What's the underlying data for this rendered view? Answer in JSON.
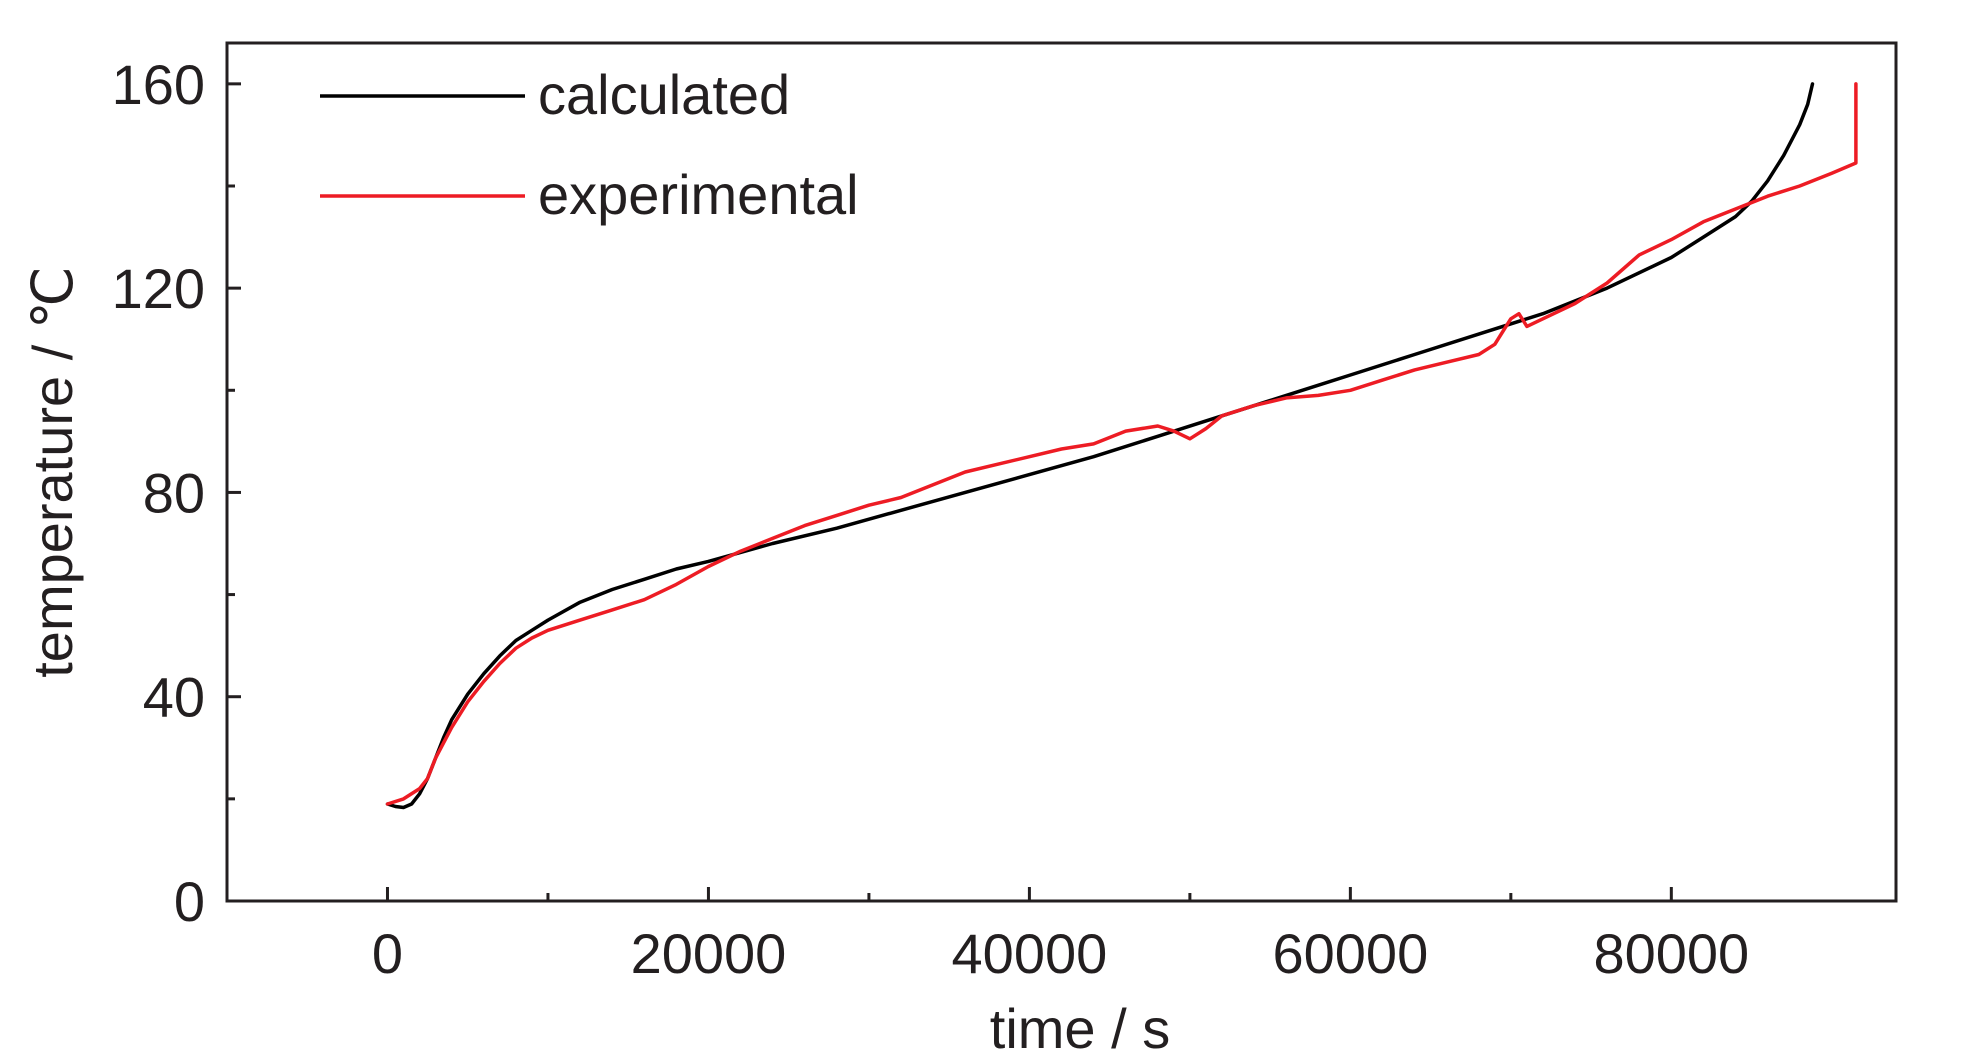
{
  "chart_data": {
    "type": "line",
    "title": "",
    "xlabel": "time / s",
    "ylabel": "temperature / ℃",
    "xlim": [
      -10000,
      94000
    ],
    "ylim": [
      0,
      168
    ],
    "xticks": [
      0,
      20000,
      40000,
      60000,
      80000
    ],
    "xticks_minor": [
      10000,
      30000,
      50000,
      70000
    ],
    "yticks": [
      0,
      40,
      80,
      120,
      160
    ],
    "yticks_minor": [
      20,
      60,
      100,
      140
    ],
    "grid": false,
    "legend": "top-left",
    "series": [
      {
        "name": "calculated",
        "color": "#000000",
        "x": [
          0,
          500,
          1000,
          1500,
          2000,
          2500,
          3000,
          3500,
          4000,
          5000,
          6000,
          7000,
          8000,
          9000,
          10000,
          12000,
          14000,
          16000,
          18000,
          20000,
          24000,
          28000,
          32000,
          36000,
          40000,
          44000,
          48000,
          52000,
          56000,
          60000,
          64000,
          68000,
          72000,
          76000,
          80000,
          82000,
          84000,
          85000,
          86000,
          87000,
          88000,
          88500,
          88800
        ],
        "y": [
          19,
          18.5,
          18.3,
          19,
          21,
          24,
          28,
          32,
          35.5,
          40.5,
          44.5,
          48,
          51,
          53,
          55,
          58.5,
          61,
          63,
          65,
          66.5,
          70,
          73,
          76.5,
          80,
          83.5,
          87,
          91,
          95,
          99,
          103,
          107,
          111,
          115,
          120,
          126,
          130,
          134,
          137,
          141,
          146,
          152,
          156,
          160
        ]
      },
      {
        "name": "experimental",
        "color": "#ed1c24",
        "x": [
          0,
          1000,
          2000,
          2500,
          3000,
          4000,
          5000,
          6000,
          7000,
          8000,
          9000,
          10000,
          12000,
          14000,
          16000,
          18000,
          20000,
          22000,
          24000,
          26000,
          28000,
          30000,
          32000,
          34000,
          36000,
          38000,
          40000,
          42000,
          44000,
          46000,
          48000,
          49000,
          50000,
          51000,
          52000,
          54000,
          56000,
          58000,
          60000,
          62000,
          64000,
          66000,
          68000,
          69000,
          70000,
          70500,
          71000,
          72000,
          74000,
          76000,
          78000,
          80000,
          82000,
          84000,
          86000,
          88000,
          90000,
          91500,
          91500,
          91500
        ],
        "y": [
          19,
          20,
          22,
          24,
          28,
          34,
          39,
          43,
          46.5,
          49.5,
          51.5,
          53,
          55,
          57,
          59,
          62,
          65.5,
          68.5,
          71,
          73.5,
          75.5,
          77.5,
          79,
          81.5,
          84,
          85.5,
          87,
          88.5,
          89.5,
          92,
          93,
          92,
          90.5,
          92.5,
          95,
          97,
          98.5,
          99,
          100,
          102,
          104,
          105.5,
          107,
          109,
          114,
          115,
          112.5,
          114,
          117,
          121,
          126.5,
          129.5,
          133,
          135.5,
          138,
          140,
          142.5,
          144.5,
          152,
          160
        ]
      }
    ]
  }
}
